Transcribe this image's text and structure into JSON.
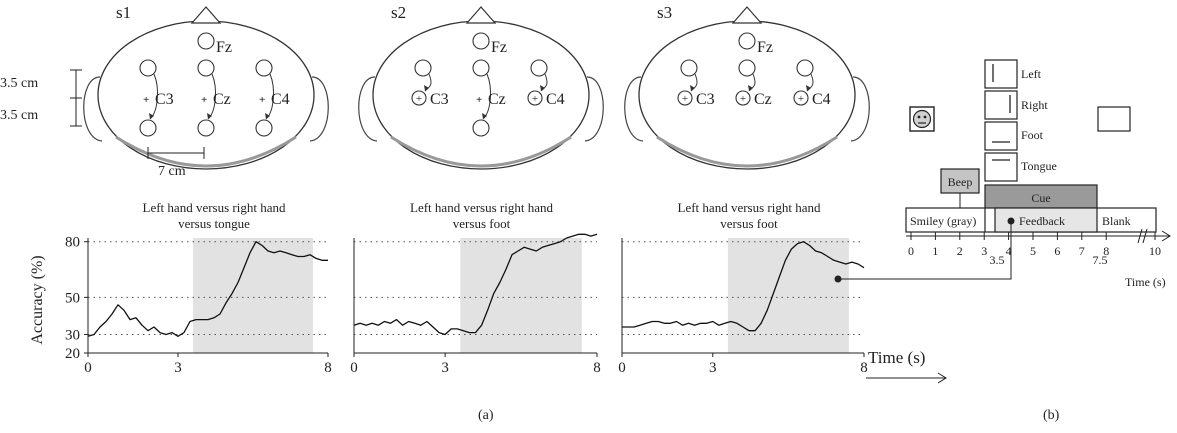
{
  "panel_a": {
    "heads": [
      {
        "label": "s1",
        "electrodes": [
          "Fz",
          "C3",
          "Cz",
          "C4"
        ]
      },
      {
        "label": "s2",
        "electrodes": [
          "Fz",
          "C3",
          "Cz",
          "C4"
        ]
      },
      {
        "label": "s3",
        "electrodes": [
          "Fz",
          "C3",
          "Cz",
          "C4"
        ]
      }
    ],
    "dimensions": {
      "vertical_top": "3.5 cm",
      "vertical_bottom": "3.5 cm",
      "horizontal": "7 cm"
    },
    "time_axis_label": "Time (s)",
    "panel_label": "(a)"
  },
  "chart_data": [
    {
      "type": "line",
      "title": [
        "Left hand versus right hand",
        "versus tongue"
      ],
      "ylabel": "Accuracy (%)",
      "xlim": [
        0,
        8
      ],
      "ylim": [
        20,
        82
      ],
      "xticks": [
        0,
        3,
        8
      ],
      "yticks": [
        20,
        30,
        50,
        80
      ],
      "gridlines_y": [
        30,
        50,
        80
      ],
      "feedback_shading": [
        3.5,
        7.5
      ],
      "series": [
        {
          "x": [
            0,
            0.2,
            0.4,
            0.6,
            0.8,
            1.0,
            1.2,
            1.4,
            1.6,
            1.8,
            2.0,
            2.2,
            2.4,
            2.6,
            2.8,
            3.0,
            3.2,
            3.4,
            3.6,
            3.8,
            4.0,
            4.2,
            4.4,
            4.6,
            4.8,
            5.0,
            5.2,
            5.4,
            5.6,
            5.8,
            6.0,
            6.2,
            6.4,
            6.6,
            6.8,
            7.0,
            7.2,
            7.4,
            7.6,
            7.8,
            8.0
          ],
          "y": [
            29,
            30,
            34,
            37,
            41,
            46,
            43,
            38,
            39,
            35,
            32,
            34,
            31,
            30,
            31,
            29,
            31,
            37,
            38,
            38,
            38,
            39,
            41,
            47,
            52,
            58,
            66,
            74,
            80,
            78,
            75,
            74,
            75,
            74,
            73,
            72,
            72,
            73,
            71,
            70,
            70
          ]
        }
      ]
    },
    {
      "type": "line",
      "title": [
        "Left hand versus right hand",
        "versus foot"
      ],
      "xlim": [
        0,
        8
      ],
      "ylim": [
        20,
        82
      ],
      "xticks": [
        0,
        3,
        8
      ],
      "gridlines_y": [
        30,
        50,
        80
      ],
      "feedback_shading": [
        3.5,
        7.5
      ],
      "series": [
        {
          "x": [
            0,
            0.2,
            0.4,
            0.6,
            0.8,
            1.0,
            1.2,
            1.4,
            1.6,
            1.8,
            2.0,
            2.2,
            2.4,
            2.6,
            2.8,
            3.0,
            3.2,
            3.4,
            3.6,
            3.8,
            4.0,
            4.2,
            4.4,
            4.6,
            4.8,
            5.0,
            5.2,
            5.4,
            5.6,
            5.8,
            6.0,
            6.2,
            6.4,
            6.6,
            6.8,
            7.0,
            7.2,
            7.4,
            7.6,
            7.8,
            8.0
          ],
          "y": [
            35,
            36,
            35,
            36,
            35,
            37,
            36,
            38,
            35,
            37,
            36,
            35,
            37,
            34,
            31,
            30,
            33,
            33,
            32,
            31,
            31,
            35,
            43,
            52,
            58,
            65,
            73,
            75,
            77,
            76,
            75,
            77,
            78,
            79,
            80,
            82,
            83,
            84,
            84,
            83,
            84
          ]
        }
      ]
    },
    {
      "type": "line",
      "title": [
        "Left hand versus right hand",
        "versus foot"
      ],
      "xlim": [
        0,
        8
      ],
      "ylim": [
        20,
        82
      ],
      "xticks": [
        0,
        3,
        8
      ],
      "gridlines_y": [
        30,
        50,
        80
      ],
      "feedback_shading": [
        3.5,
        7.5
      ],
      "series": [
        {
          "x": [
            0,
            0.2,
            0.4,
            0.6,
            0.8,
            1.0,
            1.2,
            1.4,
            1.6,
            1.8,
            2.0,
            2.2,
            2.4,
            2.6,
            2.8,
            3.0,
            3.2,
            3.4,
            3.6,
            3.8,
            4.0,
            4.2,
            4.4,
            4.6,
            4.8,
            5.0,
            5.2,
            5.4,
            5.6,
            5.8,
            6.0,
            6.2,
            6.4,
            6.6,
            6.8,
            7.0,
            7.2,
            7.4,
            7.6,
            7.8,
            8.0
          ],
          "y": [
            34,
            34,
            34,
            35,
            36,
            37,
            37,
            36,
            36,
            37,
            35,
            36,
            35,
            36,
            36,
            37,
            35,
            36,
            37,
            36,
            34,
            32,
            32,
            36,
            43,
            52,
            61,
            70,
            76,
            79,
            80,
            78,
            75,
            74,
            72,
            70,
            69,
            68,
            69,
            68,
            66
          ]
        }
      ]
    }
  ],
  "panel_b": {
    "cue_labels": [
      "Left",
      "Right",
      "Foot",
      "Tongue"
    ],
    "beep_label": "Beep",
    "cue_label": "Cue",
    "smiley_label": "Smiley (gray)",
    "feedback_label": "Feedback",
    "blank_label": "Blank",
    "timeline_ticks": [
      "0",
      "1",
      "2",
      "3",
      "4",
      "5",
      "6",
      "7",
      "8",
      "10"
    ],
    "extra_ticks": [
      "3.5",
      "7.5"
    ],
    "time_axis_label": "Time (s)",
    "panel_label": "(b)"
  },
  "colors": {
    "shading": "#e2e2e2",
    "cue_fill": "#9a9a9a",
    "beep_fill": "#c4c4c4",
    "feedback_fill": "#e6e6e6",
    "line": "#111111"
  }
}
